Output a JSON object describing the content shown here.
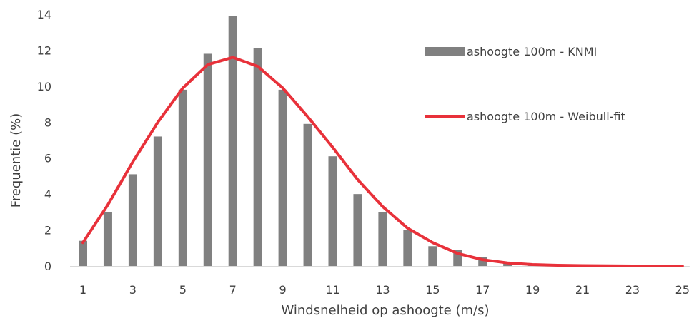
{
  "chart_data": {
    "type": "bar",
    "xlabel": "Windsnelheid op ashoogte (m/s)",
    "ylabel": "Frequentie (%)",
    "ylim": [
      0,
      14
    ],
    "yticks": [
      0,
      2,
      4,
      6,
      8,
      10,
      12,
      14
    ],
    "xticks": [
      1,
      3,
      5,
      7,
      9,
      11,
      13,
      15,
      17,
      19,
      21,
      23,
      25
    ],
    "x": [
      1,
      2,
      3,
      4,
      5,
      6,
      7,
      8,
      9,
      10,
      11,
      12,
      13,
      14,
      15,
      16,
      17,
      18,
      19,
      20,
      21,
      22,
      23,
      24,
      25
    ],
    "grid": false,
    "legend_position": "right",
    "series": [
      {
        "name": "ashoogte 100m - KNMI",
        "type": "bar",
        "color": "#808080",
        "values": [
          1.4,
          3.0,
          5.1,
          7.2,
          9.8,
          11.8,
          13.9,
          12.1,
          9.8,
          7.9,
          6.1,
          4.0,
          3.0,
          2.0,
          1.1,
          0.9,
          0.5,
          0.2,
          0.1,
          0.05,
          0.02,
          0.0,
          0.0,
          0.0,
          0.0
        ]
      },
      {
        "name": "ashoogte 100m - Weibull-fit",
        "type": "line",
        "color": "#e8313a",
        "values": [
          1.3,
          3.4,
          5.8,
          8.0,
          9.9,
          11.2,
          11.6,
          11.1,
          9.9,
          8.3,
          6.6,
          4.8,
          3.3,
          2.1,
          1.3,
          0.7,
          0.35,
          0.17,
          0.08,
          0.04,
          0.02,
          0.01,
          0.0,
          0.0,
          0.0
        ]
      }
    ]
  }
}
